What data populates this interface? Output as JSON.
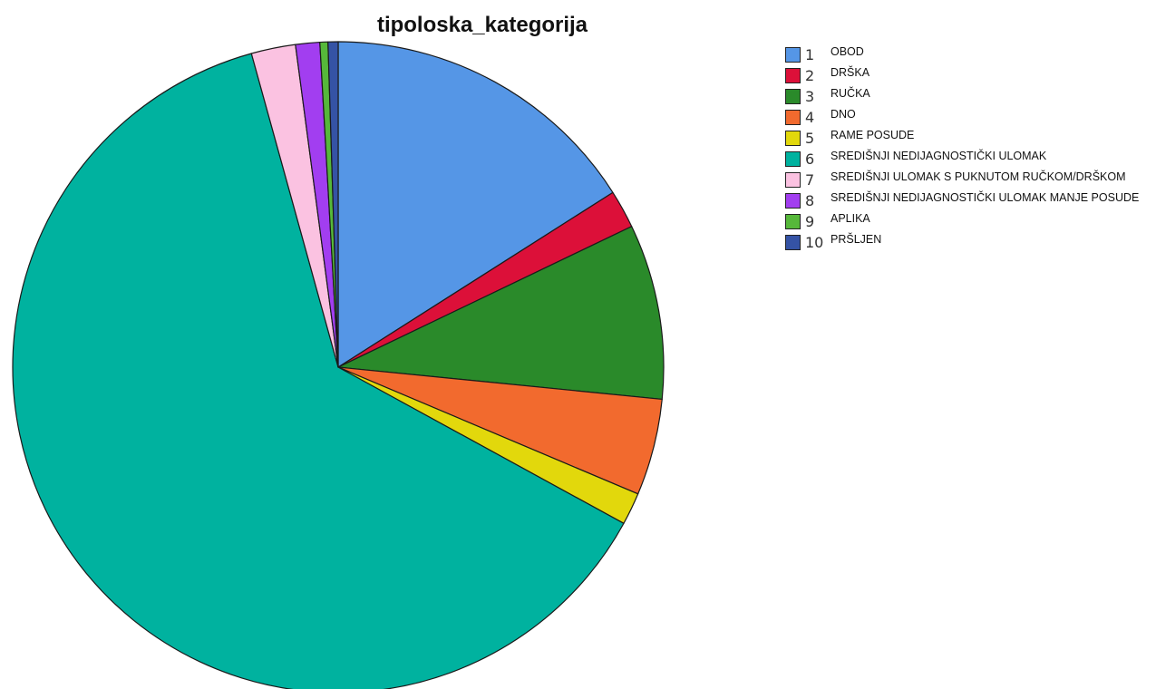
{
  "chart_data": {
    "type": "pie",
    "title": "tipoloska_kategorija",
    "legend_position": "right",
    "start_angle": "12 o'clock, clockwise",
    "slices": [
      {
        "code": "1",
        "label": "OBOD",
        "value": 16.0,
        "color": "#5596e6"
      },
      {
        "code": "2",
        "label": "DRŠKA",
        "value": 1.9,
        "color": "#dc1039"
      },
      {
        "code": "3",
        "label": "RUČKA",
        "value": 8.7,
        "color": "#2a8a2a"
      },
      {
        "code": "4",
        "label": "DNO",
        "value": 4.8,
        "color": "#f26a2e"
      },
      {
        "code": "5",
        "label": "RAME POSUDE",
        "value": 1.6,
        "color": "#e2d80c"
      },
      {
        "code": "6",
        "label": "SREDIŠNJI NEDIJAGNOSTIČKI ULOMAK",
        "value": 62.8,
        "color": "#00b29f"
      },
      {
        "code": "7",
        "label": "SREDIŠNJI ULOMAK S PUKNUTOM RUČKOM/DRŠKOM",
        "value": 2.2,
        "color": "#fbc2e1"
      },
      {
        "code": "8",
        "label": "SREDIŠNJI NEDIJAGNOSTIČKI ULOMAK MANJE POSUDE",
        "value": 1.2,
        "color": "#a23ef0"
      },
      {
        "code": "9",
        "label": "APLIKA",
        "value": 0.4,
        "color": "#56b83a"
      },
      {
        "code": "10",
        "label": "PRŠLJEN",
        "value": 0.5,
        "color": "#3553a5"
      }
    ]
  }
}
